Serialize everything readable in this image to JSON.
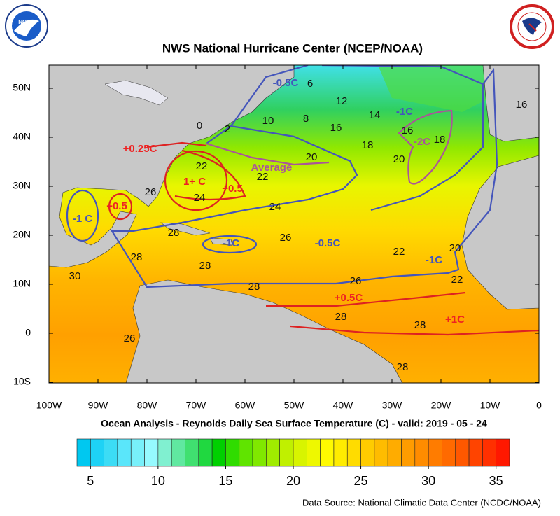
{
  "title": "NWS National Hurricane Center (NCEP/NOAA)",
  "subtitle": "Ocean Analysis - Reynolds Daily Sea Surface Temperature (C) - valid: 2019 - 05 - 24",
  "source": "Data Source: National Climatic Data Center (NCDC/NOAA)",
  "map": {
    "lon_ticks": [
      {
        "value": -100,
        "label": "100W"
      },
      {
        "value": -90,
        "label": "90W"
      },
      {
        "value": -80,
        "label": "80W"
      },
      {
        "value": -70,
        "label": "70W"
      },
      {
        "value": -60,
        "label": "60W"
      },
      {
        "value": -50,
        "label": "50W"
      },
      {
        "value": -40,
        "label": "40W"
      },
      {
        "value": -30,
        "label": "30W"
      },
      {
        "value": -20,
        "label": "20W"
      },
      {
        "value": -10,
        "label": "10W"
      },
      0
    ],
    "lat_ticks": [
      {
        "value": 50,
        "label": "50N"
      },
      {
        "value": 40,
        "label": "40N"
      },
      {
        "value": 30,
        "label": "30N"
      },
      {
        "value": 20,
        "label": "20N"
      },
      {
        "value": 10,
        "label": "10N"
      },
      0,
      {
        "value": -10,
        "label": "10S"
      }
    ],
    "contour_labels": [
      "6",
      "12",
      "14",
      "16",
      "10",
      "8",
      "16",
      "16",
      "18",
      "0",
      "2",
      "18",
      "20",
      "20",
      "22",
      "22",
      "26",
      "24",
      "24",
      "26",
      "28",
      "28",
      "28",
      "30",
      "22",
      "20",
      "26",
      "22",
      "28",
      "28",
      "28",
      "26",
      "28"
    ],
    "anomaly_labels": [
      {
        "text": "-0.5C",
        "color": "#4455bb"
      },
      {
        "text": "-1C",
        "color": "#4455bb"
      },
      {
        "text": "-2C",
        "color": "#aa5599"
      },
      {
        "text": "+0.25C",
        "color": "#ee2222"
      },
      {
        "text": "Average",
        "color": "#aa5599"
      },
      {
        "text": "1+ C",
        "color": "#ee2222"
      },
      {
        "text": "+0.5",
        "color": "#ee2222"
      },
      {
        "text": "+0.5",
        "color": "#ee2222"
      },
      {
        "text": "-1 C",
        "color": "#4455bb"
      },
      {
        "text": "-1C",
        "color": "#4455bb"
      },
      {
        "text": "-0.5C",
        "color": "#4455bb"
      },
      {
        "text": "-1C",
        "color": "#4455bb"
      },
      {
        "text": "+0.5C",
        "color": "#ee2222"
      },
      {
        "text": "+1C",
        "color": "#ee2222"
      }
    ]
  },
  "colorbar": {
    "lim": [
      4,
      36
    ],
    "ticks": [
      5,
      10,
      15,
      20,
      25,
      30,
      35
    ],
    "colors": [
      "#00c8f0",
      "#1ed2f5",
      "#3cdcf5",
      "#5ae6fa",
      "#78f0fa",
      "#96faff",
      "#80f0d0",
      "#60e8a0",
      "#40e070",
      "#20d840",
      "#00d000",
      "#30dc00",
      "#60e400",
      "#80e800",
      "#a0ec00",
      "#c0f000",
      "#d8f400",
      "#eef800",
      "#fffa00",
      "#ffec00",
      "#ffdc00",
      "#ffcc00",
      "#ffbc00",
      "#ffac00",
      "#ff9c00",
      "#ff8c00",
      "#ff7c00",
      "#ff6a00",
      "#ff5800",
      "#ff4400",
      "#ff3000",
      "#ff1800"
    ]
  }
}
